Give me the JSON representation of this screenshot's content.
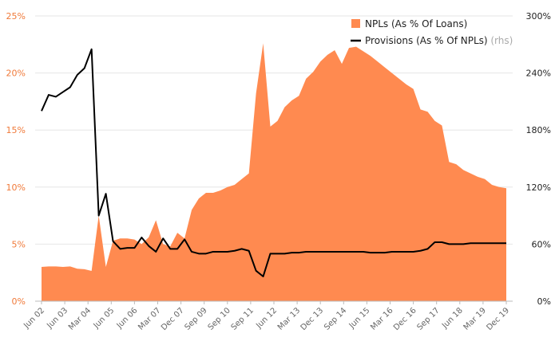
{
  "chart_data": {
    "type": "area",
    "x_ticks": [
      "Jun 02",
      "Jun 03",
      "Mar 04",
      "Jun 05",
      "Jun 06",
      "Mar 07",
      "Dec 07",
      "Sep 09",
      "Sep 10",
      "Sep 11",
      "Jun 12",
      "Mar 13",
      "Dec 13",
      "Sep 14",
      "Jun 15",
      "Mar 16",
      "Dec 16",
      "Sep 17",
      "Jun 18",
      "Mar 19",
      "Dec 19"
    ],
    "y_left": {
      "min": 0,
      "max": 25,
      "ticks": [
        "0%",
        "5%",
        "10%",
        "15%",
        "20%",
        "25%"
      ],
      "color": "#f07a3a"
    },
    "y_right": {
      "min": 0,
      "max": 300,
      "ticks": [
        "0%",
        "60%",
        "120%",
        "180%",
        "240%",
        "300%"
      ]
    },
    "grid": "horizontal",
    "legend": {
      "placement": "top-right",
      "entries": [
        {
          "label": "NPLs (As % Of Loans)",
          "color": "#ff8a50",
          "kind": "area"
        },
        {
          "label": "Provisions (As % Of NPLs)",
          "note": "(rhs)",
          "color": "#000000",
          "kind": "line"
        }
      ]
    },
    "series": [
      {
        "name": "NPLs (As % Of Loans)",
        "axis": "left",
        "type": "area",
        "color": "#ff8a50",
        "values": [
          3.0,
          3.05,
          3.05,
          3.0,
          3.05,
          2.85,
          2.8,
          2.65,
          7.5,
          3.0,
          5.3,
          5.5,
          5.5,
          5.4,
          5.0,
          5.6,
          7.1,
          5.0,
          4.8,
          6.0,
          5.5,
          8.0,
          9.0,
          9.5,
          9.5,
          9.7,
          10.0,
          10.2,
          10.7,
          11.2,
          18.2,
          22.6,
          15.3,
          15.8,
          17.0,
          17.6,
          18.0,
          19.5,
          20.1,
          21.0,
          21.6,
          22.0,
          20.8,
          22.2,
          22.3,
          21.9,
          21.5,
          21.0,
          20.5,
          20.0,
          19.5,
          19.0,
          18.6,
          16.8,
          16.6,
          15.8,
          15.4,
          12.2,
          12.0,
          11.5,
          11.2,
          10.9,
          10.7,
          10.2,
          10.0,
          9.9
        ]
      },
      {
        "name": "Provisions (As % Of NPLs)",
        "axis": "right",
        "type": "line",
        "color": "#000000",
        "values": [
          200,
          217,
          215,
          220,
          225,
          238,
          245,
          265,
          90,
          113,
          63,
          55,
          56,
          56,
          67,
          58,
          52,
          66,
          55,
          55,
          65,
          52,
          50,
          50,
          52,
          52,
          52,
          53,
          55,
          53,
          32,
          26,
          50,
          50,
          50,
          51,
          51,
          52,
          52,
          52,
          52,
          52,
          52,
          52,
          52,
          52,
          51,
          51,
          51,
          52,
          52,
          52,
          52,
          53,
          55,
          62,
          62,
          60,
          60,
          60,
          61,
          61,
          61,
          61,
          61,
          61
        ]
      }
    ]
  }
}
